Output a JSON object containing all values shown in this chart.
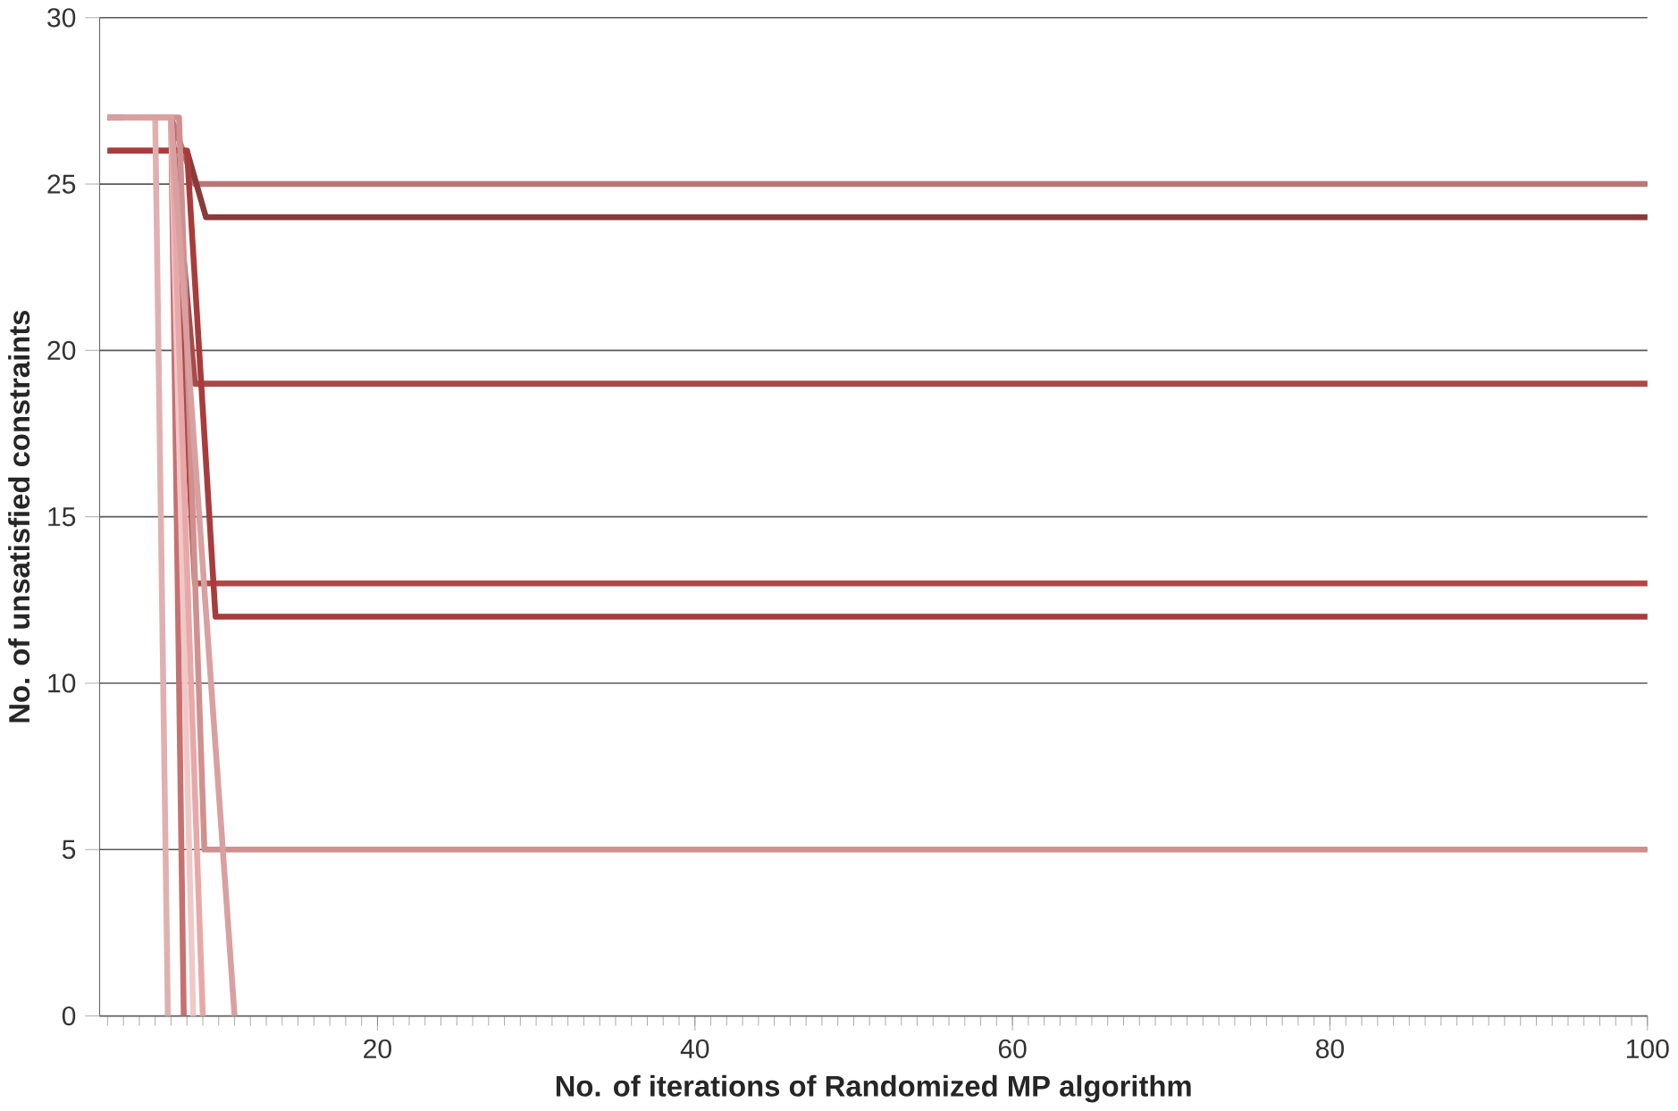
{
  "chart_data": {
    "type": "line",
    "xlabel": "No. of iterations of Randomized MP algorithm",
    "ylabel": "No. of unsatisfied constraints",
    "xlim": [
      2.5,
      100
    ],
    "xticks": [
      20,
      40,
      60,
      80,
      100
    ],
    "ylim": [
      0,
      30
    ],
    "yticks": [
      0,
      5,
      10,
      15,
      20,
      25,
      30
    ],
    "grid": "y",
    "marker": "none",
    "line_style": "solid",
    "series": [
      {
        "color": "#b87878",
        "x": [
          3,
          7,
          8.5,
          100
        ],
        "values": [
          27,
          27,
          25,
          25
        ]
      },
      {
        "color": "#8b3a3a",
        "x": [
          3,
          8,
          9.2,
          100
        ],
        "values": [
          26,
          26,
          24,
          24
        ]
      },
      {
        "color": "#a84a4a",
        "x": [
          4,
          7,
          8.5,
          100
        ],
        "values": [
          27,
          27,
          19,
          19
        ]
      },
      {
        "color": "#b04848",
        "x": [
          5,
          7,
          8.5,
          100
        ],
        "values": [
          27,
          27,
          13,
          13
        ]
      },
      {
        "color": "#a83c3c",
        "x": [
          3,
          8,
          9.8,
          100
        ],
        "values": [
          26,
          26,
          12,
          12
        ]
      },
      {
        "color": "#d09090",
        "x": [
          4,
          7.5,
          9.1,
          100
        ],
        "values": [
          27,
          27,
          5,
          5
        ]
      },
      {
        "color": "#e0b0b0",
        "x": [
          3,
          6,
          6.8
        ],
        "values": [
          27,
          27,
          0
        ]
      },
      {
        "color": "#c87070",
        "x": [
          3,
          7,
          7.8
        ],
        "values": [
          27,
          27,
          0
        ]
      },
      {
        "color": "#f0c8c8",
        "x": [
          4,
          7,
          8.4
        ],
        "values": [
          27,
          27,
          0
        ]
      },
      {
        "color": "#e8a8a8",
        "x": [
          5,
          7,
          9
        ],
        "values": [
          27,
          27,
          0
        ]
      },
      {
        "color": "#d8a0a0",
        "x": [
          3,
          7,
          11
        ],
        "values": [
          27,
          27,
          0
        ]
      }
    ]
  }
}
